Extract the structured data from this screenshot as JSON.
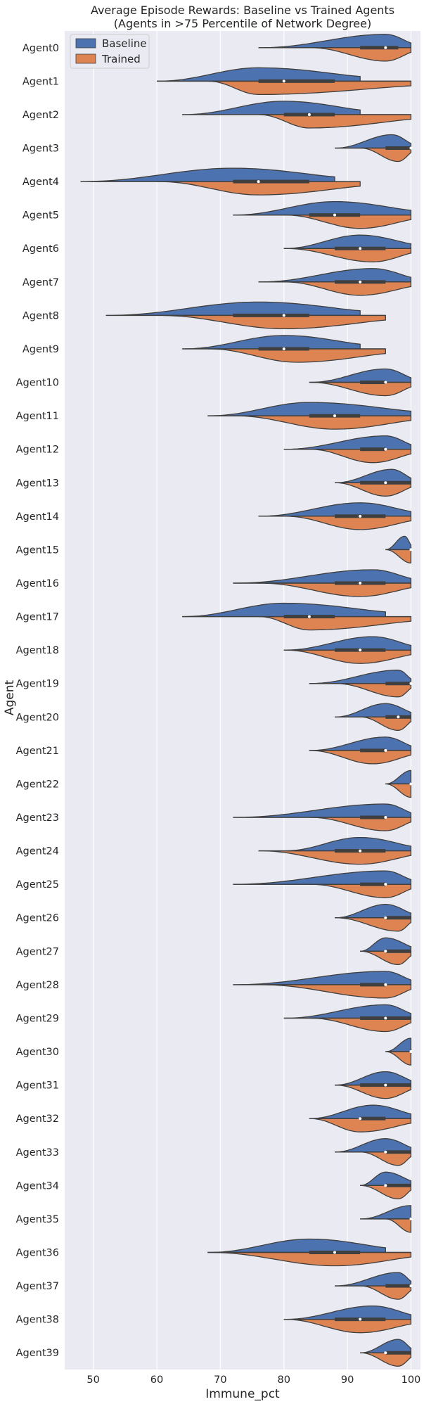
{
  "chart_data": {
    "type": "split-violin",
    "title_line1": "Average Episode Rewards: Baseline vs Trained Agents",
    "title_line2": "(Agents in >75 Percentile of Network Degree)",
    "xlabel": "Immune_pct",
    "ylabel": "Agent",
    "xlim": [
      45.5,
      101.5
    ],
    "x_ticks": [
      50,
      60,
      70,
      80,
      90,
      100
    ],
    "grid": true,
    "legend_position": "top-left",
    "colors": {
      "baseline": "#4c72b0",
      "trained": "#dd8452",
      "background": "#eaeaf2",
      "grid": "#ffffff",
      "edge": "#3f3f3f"
    },
    "series": [
      {
        "name": "Baseline",
        "key": "baseline"
      },
      {
        "name": "Trained",
        "key": "trained"
      }
    ],
    "agents": [
      {
        "name": "Agent0",
        "baseline": [
          76,
          100,
          96
        ],
        "trained": [
          84,
          100,
          96
        ],
        "box": [
          92,
          98
        ],
        "median": 96
      },
      {
        "name": "Agent1",
        "baseline": [
          60,
          92,
          76
        ],
        "trained": [
          68,
          100,
          76
        ],
        "box": [
          76,
          88
        ],
        "median": 80
      },
      {
        "name": "Agent2",
        "baseline": [
          64,
          92,
          80
        ],
        "trained": [
          76,
          100,
          84
        ],
        "box": [
          80,
          88
        ],
        "median": 84
      },
      {
        "name": "Agent3",
        "baseline": [
          88,
          100,
          97
        ],
        "trained": [
          92,
          100,
          98
        ],
        "box": [
          96,
          100
        ],
        "median": 100
      },
      {
        "name": "Agent4",
        "baseline": [
          48,
          88,
          72
        ],
        "trained": [
          60,
          92,
          76
        ],
        "box": [
          72,
          84
        ],
        "median": 76
      },
      {
        "name": "Agent5",
        "baseline": [
          72,
          100,
          88
        ],
        "trained": [
          80,
          100,
          92
        ],
        "box": [
          84,
          92
        ],
        "median": 88
      },
      {
        "name": "Agent6",
        "baseline": [
          80,
          100,
          92
        ],
        "trained": [
          80,
          100,
          94
        ],
        "box": [
          88,
          96
        ],
        "median": 92
      },
      {
        "name": "Agent7",
        "baseline": [
          76,
          100,
          94
        ],
        "trained": [
          80,
          100,
          92
        ],
        "box": [
          88,
          96
        ],
        "median": 92
      },
      {
        "name": "Agent8",
        "baseline": [
          52,
          92,
          76
        ],
        "trained": [
          60,
          96,
          80
        ],
        "box": [
          72,
          84
        ],
        "median": 80
      },
      {
        "name": "Agent9",
        "baseline": [
          64,
          92,
          80
        ],
        "trained": [
          68,
          96,
          82
        ],
        "box": [
          76,
          84
        ],
        "median": 80
      },
      {
        "name": "Agent10",
        "baseline": [
          84,
          100,
          96
        ],
        "trained": [
          84,
          100,
          96
        ],
        "box": [
          92,
          96
        ],
        "median": 96
      },
      {
        "name": "Agent11",
        "baseline": [
          68,
          100,
          84
        ],
        "trained": [
          72,
          100,
          88
        ],
        "box": [
          84,
          92
        ],
        "median": 88
      },
      {
        "name": "Agent12",
        "baseline": [
          80,
          100,
          96
        ],
        "trained": [
          84,
          100,
          94
        ],
        "box": [
          92,
          96
        ],
        "median": 96
      },
      {
        "name": "Agent13",
        "baseline": [
          88,
          100,
          97
        ],
        "trained": [
          88,
          100,
          96
        ],
        "box": [
          92,
          100
        ],
        "median": 96
      },
      {
        "name": "Agent14",
        "baseline": [
          76,
          100,
          92
        ],
        "trained": [
          80,
          100,
          92
        ],
        "box": [
          88,
          96
        ],
        "median": 92
      },
      {
        "name": "Agent15",
        "baseline": [
          96,
          100,
          99
        ],
        "trained": [
          96,
          100,
          100
        ],
        "box": [
          100,
          100
        ],
        "median": 100
      },
      {
        "name": "Agent16",
        "baseline": [
          72,
          100,
          94
        ],
        "trained": [
          76,
          100,
          92
        ],
        "box": [
          88,
          96
        ],
        "median": 92
      },
      {
        "name": "Agent17",
        "baseline": [
          64,
          96,
          80
        ],
        "trained": [
          76,
          100,
          84
        ],
        "box": [
          80,
          88
        ],
        "median": 84
      },
      {
        "name": "Agent18",
        "baseline": [
          80,
          100,
          94
        ],
        "trained": [
          80,
          100,
          92
        ],
        "box": [
          88,
          96
        ],
        "median": 92
      },
      {
        "name": "Agent19",
        "baseline": [
          84,
          100,
          98
        ],
        "trained": [
          88,
          100,
          98
        ],
        "box": [
          96,
          100
        ],
        "median": 100
      },
      {
        "name": "Agent20",
        "baseline": [
          88,
          100,
          96
        ],
        "trained": [
          92,
          100,
          98
        ],
        "box": [
          96,
          100
        ],
        "median": 98
      },
      {
        "name": "Agent21",
        "baseline": [
          84,
          100,
          96
        ],
        "trained": [
          84,
          100,
          94
        ],
        "box": [
          92,
          96
        ],
        "median": 96
      },
      {
        "name": "Agent22",
        "baseline": [
          96,
          100,
          100
        ],
        "trained": [
          96,
          100,
          100
        ],
        "box": [
          100,
          100
        ],
        "median": 100
      },
      {
        "name": "Agent23",
        "baseline": [
          72,
          100,
          96
        ],
        "trained": [
          84,
          100,
          96
        ],
        "box": [
          92,
          96
        ],
        "median": 96
      },
      {
        "name": "Agent24",
        "baseline": [
          80,
          100,
          92
        ],
        "trained": [
          76,
          100,
          92
        ],
        "box": [
          88,
          96
        ],
        "median": 92
      },
      {
        "name": "Agent25",
        "baseline": [
          72,
          100,
          96
        ],
        "trained": [
          84,
          100,
          96
        ],
        "box": [
          92,
          96
        ],
        "median": 96
      },
      {
        "name": "Agent26",
        "baseline": [
          88,
          100,
          96
        ],
        "trained": [
          88,
          100,
          98
        ],
        "box": [
          96,
          100
        ],
        "median": 96
      },
      {
        "name": "Agent27",
        "baseline": [
          92,
          100,
          96
        ],
        "trained": [
          92,
          100,
          98
        ],
        "box": [
          96,
          100
        ],
        "median": 96
      },
      {
        "name": "Agent28",
        "baseline": [
          72,
          100,
          96
        ],
        "trained": [
          76,
          100,
          96
        ],
        "box": [
          92,
          96
        ],
        "median": 96
      },
      {
        "name": "Agent29",
        "baseline": [
          80,
          100,
          96
        ],
        "trained": [
          84,
          100,
          96
        ],
        "box": [
          92,
          100
        ],
        "median": 96
      },
      {
        "name": "Agent30",
        "baseline": [
          96,
          100,
          100
        ],
        "trained": [
          96,
          100,
          100
        ],
        "box": [
          100,
          100
        ],
        "median": 100
      },
      {
        "name": "Agent31",
        "baseline": [
          88,
          100,
          96
        ],
        "trained": [
          88,
          100,
          96
        ],
        "box": [
          92,
          100
        ],
        "median": 96
      },
      {
        "name": "Agent32",
        "baseline": [
          84,
          100,
          94
        ],
        "trained": [
          84,
          100,
          92
        ],
        "box": [
          92,
          96
        ],
        "median": 92
      },
      {
        "name": "Agent33",
        "baseline": [
          88,
          100,
          96
        ],
        "trained": [
          92,
          100,
          98
        ],
        "box": [
          96,
          100
        ],
        "median": 96
      },
      {
        "name": "Agent34",
        "baseline": [
          92,
          100,
          96
        ],
        "trained": [
          92,
          100,
          98
        ],
        "box": [
          96,
          100
        ],
        "median": 96
      },
      {
        "name": "Agent35",
        "baseline": [
          92,
          100,
          100
        ],
        "trained": [
          96,
          100,
          100
        ],
        "box": [
          100,
          100
        ],
        "median": 100
      },
      {
        "name": "Agent36",
        "baseline": [
          68,
          96,
          84
        ],
        "trained": [
          68,
          100,
          88
        ],
        "box": [
          84,
          92
        ],
        "median": 88
      },
      {
        "name": "Agent37",
        "baseline": [
          88,
          100,
          98
        ],
        "trained": [
          92,
          100,
          98
        ],
        "box": [
          96,
          100
        ],
        "median": 100
      },
      {
        "name": "Agent38",
        "baseline": [
          80,
          100,
          94
        ],
        "trained": [
          80,
          100,
          92
        ],
        "box": [
          88,
          96
        ],
        "median": 92
      },
      {
        "name": "Agent39",
        "baseline": [
          92,
          100,
          98
        ],
        "trained": [
          92,
          100,
          98
        ],
        "box": [
          96,
          100
        ],
        "median": 96
      }
    ]
  }
}
